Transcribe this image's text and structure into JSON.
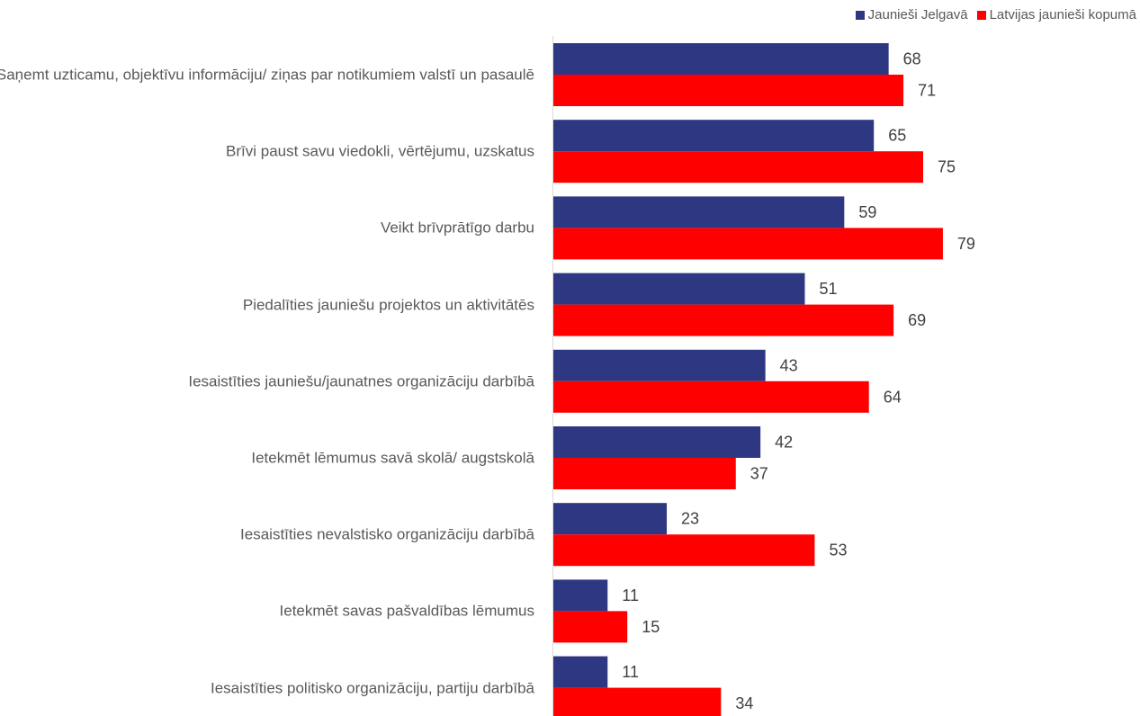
{
  "chart_data": {
    "type": "bar",
    "orientation": "horizontal",
    "title": "",
    "xlabel": "",
    "ylabel": "",
    "xlim": [
      0,
      100
    ],
    "grid": false,
    "legend_position": "top-right",
    "categories": [
      "Saņemt uzticamu, objektīvu informāciju/ ziņas par notikumiem valstī un pasaulē",
      "Brīvi paust savu viedokli, vērtējumu, uzskatus",
      "Veikt brīvprātīgo darbu",
      "Piedalīties jauniešu projektos un aktivitātēs",
      "Iesaistīties jauniešu/jaunatnes organizāciju darbībā",
      "Ietekmēt lēmumus savā skolā/ augstskolā",
      "Iesaistīties nevalstisko organizāciju darbībā",
      "Ietekmēt savas pašvaldības lēmumus",
      "Iesaistīties politisko organizāciju, partiju darbībā"
    ],
    "series": [
      {
        "name": "Jaunieši Jelgavā",
        "color": "#2e3782",
        "values": [
          68,
          65,
          59,
          51,
          43,
          42,
          23,
          11,
          11
        ]
      },
      {
        "name": "Latvijas jaunieši kopumā",
        "color": "#ff0000",
        "values": [
          71,
          75,
          79,
          69,
          64,
          37,
          53,
          15,
          34
        ]
      }
    ]
  }
}
